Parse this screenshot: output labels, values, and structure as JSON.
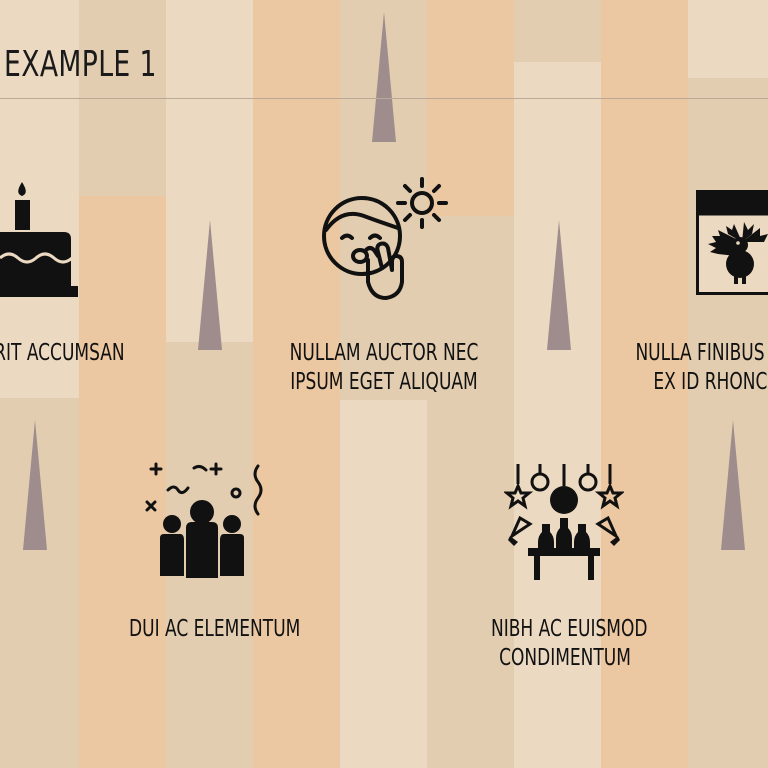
{
  "page": {
    "title": "EXAMPLE 1"
  },
  "colors": {
    "peach": "#ecc8a2",
    "beige": "#e2cdb1",
    "light": "#ecd9c2",
    "spike": "#9e8d8c",
    "ink": "#111111"
  },
  "items": [
    {
      "icon": "birthday-cake-icon",
      "lines": [
        "ERIT ACCUMSAN"
      ]
    },
    {
      "icon": "yawning-face-sun-icon",
      "lines": [
        "NULLAM AUCTOR NEC",
        "IPSUM EGET ALIQUAM"
      ]
    },
    {
      "icon": "calendar-turkey-icon",
      "lines": [
        "NULLA FINIBUS",
        "EX ID RHONC"
      ]
    },
    {
      "icon": "party-crowd-confetti-icon",
      "lines": [
        "DUI AC ELEMENTUM"
      ]
    },
    {
      "icon": "party-table-ornaments-icon",
      "lines": [
        "NIBH AC EUISMOD",
        "CONDIMENTUM"
      ]
    }
  ]
}
